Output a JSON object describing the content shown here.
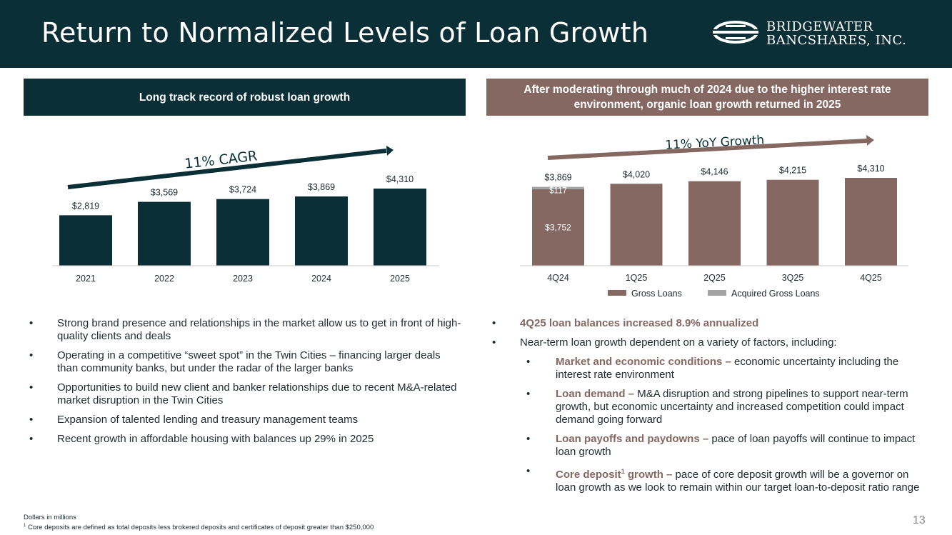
{
  "header": {
    "title": "Return to Normalized Levels of Loan Growth"
  },
  "logo": {
    "line1": "BRIDGEWATER",
    "line2": "BANCSHARES, INC."
  },
  "left": {
    "header": "Long track record of robust loan growth",
    "arrow_label": "11% CAGR",
    "bullets": [
      "Strong brand presence and relationships in the market allow us to get in front of high-quality clients and deals",
      "Operating in a competitive “sweet spot” in the Twin Cities – financing larger deals than community banks, but under the radar of the larger banks",
      "Opportunities to build new client and banker relationships due to recent M&A-related market disruption in the Twin Cities",
      "Expansion of talented lending and treasury management teams",
      "Recent growth in affordable housing with balances up 29% in 2025"
    ]
  },
  "right": {
    "header": "After moderating through much of 2024 due to the higher interest rate environment, organic loan growth returned in 2025",
    "arrow_label": "11% YoY Growth",
    "bullet1": "4Q25 loan balances increased 8.9% annualized",
    "bullet2": "Near-term loan growth dependent on a variety of factors, including:",
    "sub": [
      {
        "lead": "Market and economic conditions –",
        "text": " economic uncertainty including the interest rate environment"
      },
      {
        "lead": "Loan demand –",
        "text": " M&A disruption and strong pipelines to support near-term growth, but economic uncertainty and increased competition could impact demand going forward"
      },
      {
        "lead": "Loan payoffs and paydowns –",
        "text": " pace of loan payoffs will continue to impact loan growth"
      },
      {
        "lead": "Core deposit",
        "sup": "1",
        "lead2": " growth –",
        "text": " pace of core deposit growth will be a governor on loan growth as we look to remain within our target loan-to-deposit ratio range"
      }
    ]
  },
  "footnotes": {
    "units": "Dollars in millions",
    "sup": "1",
    "note": " Core deposits are defined as total deposits less brokered deposits and certificates of deposit greater than $250,000"
  },
  "page_number": "13",
  "colors": {
    "navy": "#0b2f36",
    "mauve": "#856862",
    "gray": "#a3a3a3"
  },
  "chart_data": [
    {
      "type": "bar",
      "categories": [
        "2021",
        "2022",
        "2023",
        "2024",
        "2025"
      ],
      "values": [
        2819,
        3569,
        3724,
        3869,
        4310
      ],
      "labels": [
        "$2,819",
        "$3,569",
        "$3,724",
        "$3,869",
        "$4,310"
      ],
      "color": "#0b2f36",
      "ylim": [
        0,
        4310
      ],
      "annotation": "11% CAGR"
    },
    {
      "type": "bar",
      "stacked": true,
      "categories": [
        "4Q24",
        "1Q25",
        "2Q25",
        "3Q25",
        "4Q25"
      ],
      "series": [
        {
          "name": "Gross Loans",
          "values": [
            3752,
            4020,
            4146,
            4215,
            4310
          ],
          "color": "#856862"
        },
        {
          "name": "Acquired Gross Loans",
          "values": [
            117,
            0,
            0,
            0,
            0
          ],
          "color": "#a3a3a3"
        }
      ],
      "total_labels": [
        "$3,869",
        "$4,020",
        "$4,146",
        "$4,215",
        "$4,310"
      ],
      "segment_labels": {
        "Gross Loans": "$3,752",
        "Acquired Gross Loans": "$117"
      },
      "ylim": [
        0,
        4310
      ],
      "legend": "bottom",
      "annotation": "11% YoY Growth"
    }
  ]
}
